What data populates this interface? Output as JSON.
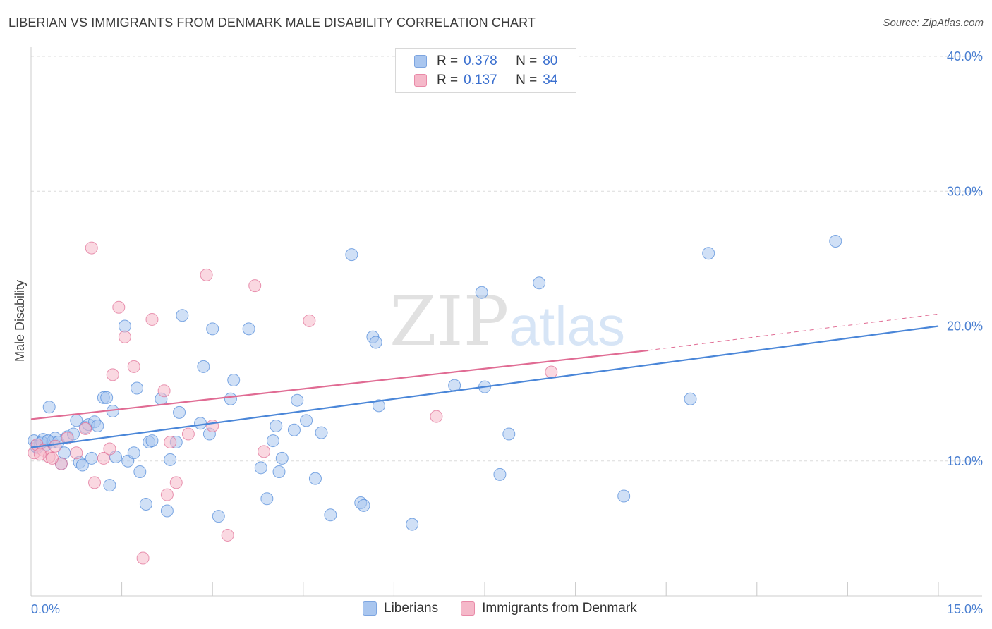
{
  "title": "LIBERIAN VS IMMIGRANTS FROM DENMARK MALE DISABILITY CORRELATION CHART",
  "source": "Source: ZipAtlas.com",
  "watermark": {
    "zip": "ZIP",
    "atlas": "atlas"
  },
  "legend": {
    "rows": [
      {
        "r_label": "R =",
        "r_value": "0.378",
        "n_label": "N =",
        "n_value": "80",
        "color": "#a9c6ef"
      },
      {
        "r_label": "R =",
        "r_value": "0.137",
        "n_label": "N =",
        "n_value": "34",
        "color": "#f5b8c9"
      }
    ]
  },
  "bottom_legend": [
    {
      "label": "Liberians",
      "color": "#a9c6ef"
    },
    {
      "label": "Immigrants from Denmark",
      "color": "#f5b8c9"
    }
  ],
  "chart_data": {
    "type": "scatter",
    "title": "LIBERIAN VS IMMIGRANTS FROM DENMARK MALE DISABILITY CORRELATION CHART",
    "xlabel": "",
    "ylabel": "Male Disability",
    "xlim": [
      0,
      15
    ],
    "ylim": [
      0,
      40
    ],
    "x_tick_labels": [
      "0.0%",
      "15.0%"
    ],
    "y_tick_labels": [
      "10.0%",
      "20.0%",
      "30.0%",
      "40.0%"
    ],
    "y_ticks": [
      10,
      20,
      30,
      40
    ],
    "grid": true,
    "series": [
      {
        "name": "Liberians",
        "color": "#4a86d8",
        "fill": "#a9c6ef",
        "trend": {
          "x": [
            0,
            15
          ],
          "y": [
            11.0,
            20.0
          ]
        },
        "points": [
          [
            0.05,
            11.5
          ],
          [
            0.1,
            11.0
          ],
          [
            0.15,
            11.3
          ],
          [
            0.2,
            11.6
          ],
          [
            0.25,
            11.2
          ],
          [
            0.3,
            14.0
          ],
          [
            0.35,
            11.4
          ],
          [
            0.4,
            11.7
          ],
          [
            0.45,
            11.4
          ],
          [
            0.5,
            9.8
          ],
          [
            0.55,
            10.6
          ],
          [
            0.6,
            11.8
          ],
          [
            0.7,
            12.0
          ],
          [
            0.75,
            13.0
          ],
          [
            0.8,
            9.9
          ],
          [
            0.85,
            9.7
          ],
          [
            0.9,
            12.5
          ],
          [
            0.95,
            12.7
          ],
          [
            1.0,
            10.2
          ],
          [
            1.05,
            12.9
          ],
          [
            1.1,
            12.6
          ],
          [
            1.2,
            14.7
          ],
          [
            1.25,
            14.7
          ],
          [
            1.3,
            8.2
          ],
          [
            1.35,
            13.7
          ],
          [
            1.4,
            10.3
          ],
          [
            1.55,
            20.0
          ],
          [
            1.6,
            10.0
          ],
          [
            1.7,
            10.6
          ],
          [
            1.75,
            15.4
          ],
          [
            1.8,
            9.2
          ],
          [
            1.9,
            6.8
          ],
          [
            1.95,
            11.4
          ],
          [
            2.0,
            11.5
          ],
          [
            2.15,
            14.6
          ],
          [
            2.25,
            6.3
          ],
          [
            2.3,
            10.1
          ],
          [
            2.4,
            11.4
          ],
          [
            2.45,
            13.6
          ],
          [
            2.5,
            20.8
          ],
          [
            2.8,
            12.8
          ],
          [
            2.85,
            17.0
          ],
          [
            2.95,
            12.0
          ],
          [
            3.0,
            19.8
          ],
          [
            3.1,
            5.9
          ],
          [
            3.3,
            14.6
          ],
          [
            3.35,
            16.0
          ],
          [
            3.6,
            19.8
          ],
          [
            3.8,
            9.5
          ],
          [
            3.9,
            7.2
          ],
          [
            4.0,
            11.5
          ],
          [
            4.05,
            12.6
          ],
          [
            4.1,
            9.2
          ],
          [
            4.15,
            10.2
          ],
          [
            4.35,
            12.3
          ],
          [
            4.4,
            14.5
          ],
          [
            4.55,
            13.0
          ],
          [
            4.7,
            8.7
          ],
          [
            4.8,
            12.1
          ],
          [
            4.95,
            6.0
          ],
          [
            5.3,
            25.3
          ],
          [
            5.45,
            6.9
          ],
          [
            5.5,
            6.7
          ],
          [
            5.65,
            19.2
          ],
          [
            5.7,
            18.8
          ],
          [
            5.75,
            14.1
          ],
          [
            6.3,
            5.3
          ],
          [
            7.0,
            15.6
          ],
          [
            7.45,
            22.5
          ],
          [
            7.5,
            15.5
          ],
          [
            7.75,
            9.0
          ],
          [
            7.9,
            12.0
          ],
          [
            8.4,
            23.2
          ],
          [
            9.8,
            7.4
          ],
          [
            10.9,
            14.6
          ],
          [
            11.2,
            25.4
          ],
          [
            13.3,
            26.3
          ],
          [
            0.08,
            11.1
          ],
          [
            0.18,
            11.4
          ],
          [
            0.28,
            11.5
          ]
        ]
      },
      {
        "name": "Immigrants from Denmark",
        "color": "#e06b93",
        "fill": "#f5b8c9",
        "trend": {
          "x": [
            0,
            10.2
          ],
          "y": [
            13.1,
            18.2
          ]
        },
        "trend_dashed": {
          "x": [
            10.2,
            15
          ],
          "y": [
            18.2,
            20.9
          ]
        },
        "points": [
          [
            0.05,
            10.6
          ],
          [
            0.1,
            11.2
          ],
          [
            0.2,
            10.8
          ],
          [
            0.3,
            10.3
          ],
          [
            0.4,
            11.1
          ],
          [
            0.5,
            9.8
          ],
          [
            0.6,
            11.7
          ],
          [
            0.75,
            10.6
          ],
          [
            0.9,
            12.4
          ],
          [
            1.0,
            25.8
          ],
          [
            1.05,
            8.4
          ],
          [
            1.2,
            10.2
          ],
          [
            1.3,
            10.9
          ],
          [
            1.35,
            16.4
          ],
          [
            1.45,
            21.4
          ],
          [
            1.55,
            19.2
          ],
          [
            1.7,
            17.0
          ],
          [
            1.85,
            2.8
          ],
          [
            2.0,
            20.5
          ],
          [
            2.2,
            15.2
          ],
          [
            2.25,
            7.5
          ],
          [
            2.3,
            11.4
          ],
          [
            2.4,
            8.4
          ],
          [
            2.6,
            12.0
          ],
          [
            2.9,
            23.8
          ],
          [
            3.0,
            12.6
          ],
          [
            3.25,
            4.5
          ],
          [
            3.7,
            23.0
          ],
          [
            3.85,
            10.7
          ],
          [
            4.6,
            20.4
          ],
          [
            6.7,
            13.3
          ],
          [
            8.6,
            16.6
          ],
          [
            0.15,
            10.5
          ],
          [
            0.35,
            10.2
          ]
        ]
      }
    ]
  }
}
